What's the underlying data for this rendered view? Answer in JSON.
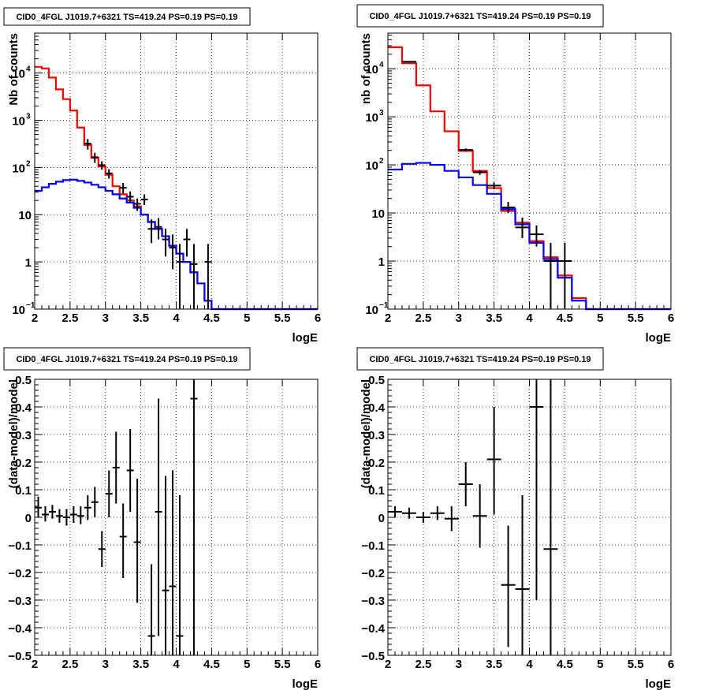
{
  "colors": {
    "data": "#000000",
    "total_model": "#ff0000",
    "source_model": "#0000ff"
  },
  "chart_data": [
    {
      "type": "line",
      "scale_y": "log",
      "title": "CID0_4FGL J1019.7+6321 TS=419.24 PS=0.19 PS=0.19",
      "xlabel": "logE",
      "ylabel": "Nb of counts",
      "xlim": [
        2,
        6
      ],
      "ylim": [
        0.1,
        70000
      ],
      "grid": true,
      "x_ticks": [
        "2",
        "2.5",
        "3",
        "3.5",
        "4",
        "4.5",
        "5",
        "5.5",
        "6"
      ],
      "y_ticks": [
        {
          "value": 0.1,
          "label": "10",
          "exp": "−1"
        },
        {
          "value": 1,
          "label": "1",
          "exp": ""
        },
        {
          "value": 10,
          "label": "10",
          "exp": ""
        },
        {
          "value": 100,
          "label": "10",
          "exp": "2"
        },
        {
          "value": 1000,
          "label": "10",
          "exp": "3"
        },
        {
          "value": 10000,
          "label": "10",
          "exp": "4"
        }
      ],
      "bin_width": 0.1,
      "bin_starts": [
        2.0,
        2.1,
        2.2,
        2.3,
        2.4,
        2.5,
        2.6,
        2.7,
        2.8,
        2.9,
        3.0,
        3.1,
        3.2,
        3.3,
        3.4,
        3.5,
        3.6,
        3.7,
        3.8,
        3.9,
        4.0,
        4.1,
        4.2,
        4.3,
        4.4,
        4.5,
        4.6,
        4.7,
        4.8,
        4.9,
        5.0,
        5.1,
        5.2,
        5.3,
        5.4,
        5.5,
        5.6,
        5.7,
        5.8,
        5.9
      ],
      "series": [
        {
          "role": "total",
          "values": [
            13500,
            12500,
            8000,
            4500,
            2800,
            1600,
            700,
            300,
            160,
            105,
            70,
            40,
            27,
            20,
            15,
            10,
            7,
            5,
            3.5,
            2.2,
            1.5,
            1.0,
            0.6,
            0.35,
            0.15,
            0.1,
            0.1,
            0.1,
            0.1,
            0.1,
            0.1,
            0.1,
            0.1,
            0.1,
            0.1,
            0.1,
            0.1,
            0.1,
            0.1,
            0.1
          ]
        },
        {
          "role": "source",
          "values": [
            32,
            38,
            45,
            50,
            54,
            55,
            52,
            48,
            43,
            38,
            32,
            27,
            22,
            18,
            14,
            10,
            7,
            5,
            3.5,
            2.2,
            1.5,
            1.0,
            0.6,
            0.35,
            0.15,
            0.1,
            0.1,
            0.1,
            0.1,
            0.1,
            0.1,
            0.1,
            0.1,
            0.1,
            0.1,
            0.1,
            0.1,
            0.1,
            0.1,
            0.1
          ]
        }
      ],
      "points": [
        {
          "x": 2.75,
          "y": 320,
          "ylo": 240,
          "yhi": 400
        },
        {
          "x": 2.85,
          "y": 165,
          "ylo": 125,
          "yhi": 205
        },
        {
          "x": 2.95,
          "y": 112,
          "ylo": 90,
          "yhi": 135
        },
        {
          "x": 3.05,
          "y": 75,
          "ylo": 58,
          "yhi": 92
        },
        {
          "x": 3.25,
          "y": 37,
          "ylo": 28,
          "yhi": 47
        },
        {
          "x": 3.35,
          "y": 24,
          "ylo": 18,
          "yhi": 31
        },
        {
          "x": 3.45,
          "y": 17,
          "ylo": 12,
          "yhi": 22
        },
        {
          "x": 3.55,
          "y": 21,
          "ylo": 16,
          "yhi": 27
        },
        {
          "x": 3.65,
          "y": 5,
          "ylo": 2.5,
          "yhi": 8
        },
        {
          "x": 3.75,
          "y": 5.5,
          "ylo": 3,
          "yhi": 8.5
        },
        {
          "x": 3.85,
          "y": 3,
          "ylo": 1.3,
          "yhi": 5
        },
        {
          "x": 3.95,
          "y": 2,
          "ylo": 0.7,
          "yhi": 3.8
        },
        {
          "x": 4.05,
          "y": 1,
          "ylo": 0.1,
          "yhi": 2.4
        },
        {
          "x": 4.15,
          "y": 3,
          "ylo": 1.3,
          "yhi": 5
        },
        {
          "x": 4.25,
          "y": 0.9,
          "ylo": 0.1,
          "yhi": 2.4
        },
        {
          "x": 4.45,
          "y": 1,
          "ylo": 0.1,
          "yhi": 2.4
        }
      ]
    },
    {
      "type": "line",
      "scale_y": "log",
      "title": "CID0_4FGL J1019.7+6321 TS=419.24 PS=0.19 PS=0.19",
      "xlabel": "logE",
      "ylabel": "nb of counts",
      "xlim": [
        2,
        6
      ],
      "ylim": [
        0.1,
        55000
      ],
      "grid": true,
      "x_ticks": [
        "2",
        "2.5",
        "3",
        "3.5",
        "4",
        "4.5",
        "5",
        "5.5",
        "6"
      ],
      "y_ticks": [
        {
          "value": 0.1,
          "label": "10",
          "exp": "−1"
        },
        {
          "value": 1,
          "label": "1",
          "exp": ""
        },
        {
          "value": 10,
          "label": "10",
          "exp": ""
        },
        {
          "value": 100,
          "label": "10",
          "exp": "2"
        },
        {
          "value": 1000,
          "label": "10",
          "exp": "3"
        },
        {
          "value": 10000,
          "label": "10",
          "exp": "4"
        }
      ],
      "bin_width": 0.2,
      "bin_starts": [
        2.0,
        2.2,
        2.4,
        2.6,
        2.8,
        3.0,
        3.2,
        3.4,
        3.6,
        3.8,
        4.0,
        4.2,
        4.4,
        4.6,
        4.8,
        5.0,
        5.2,
        5.4,
        5.6,
        5.8
      ],
      "series": [
        {
          "role": "total",
          "values": [
            28000,
            13000,
            4500,
            1300,
            500,
            195,
            75,
            33,
            11,
            6.3,
            2.6,
            1.2,
            0.5,
            0.17,
            0.1,
            0.1,
            0.1,
            0.1,
            0.1,
            0.1
          ]
        },
        {
          "role": "source",
          "values": [
            80,
            105,
            110,
            100,
            75,
            55,
            38,
            25,
            12,
            5.8,
            2.4,
            1.1,
            0.45,
            0.15,
            0.1,
            0.1,
            0.1,
            0.1,
            0.1,
            0.1
          ]
        }
      ],
      "points": [
        {
          "x": 2.3,
          "y": 14000,
          "ylo": 13500,
          "yhi": 14500
        },
        {
          "x": 3.1,
          "y": 205,
          "ylo": 190,
          "yhi": 220
        },
        {
          "x": 3.3,
          "y": 70,
          "ylo": 62,
          "yhi": 78
        },
        {
          "x": 3.5,
          "y": 37,
          "ylo": 31,
          "yhi": 43
        },
        {
          "x": 3.7,
          "y": 13,
          "ylo": 10,
          "yhi": 17
        },
        {
          "x": 3.9,
          "y": 5,
          "ylo": 3,
          "yhi": 8
        },
        {
          "x": 4.1,
          "y": 3.6,
          "ylo": 2,
          "yhi": 5.5
        },
        {
          "x": 4.3,
          "y": 1,
          "ylo": 0.1,
          "yhi": 2.4
        },
        {
          "x": 4.5,
          "y": 1,
          "ylo": 0.1,
          "yhi": 2.4
        }
      ]
    },
    {
      "type": "scatter",
      "title": "CID0_4FGL J1019.7+6321 TS=419.24 PS=0.19 PS=0.19",
      "xlabel": "logE",
      "ylabel": "(data-model)/model",
      "xlim": [
        2,
        6
      ],
      "ylim": [
        -0.5,
        0.5
      ],
      "grid": true,
      "x_ticks": [
        "2",
        "2.5",
        "3",
        "3.5",
        "4",
        "4.5",
        "5",
        "5.5",
        "6"
      ],
      "y_ticks": [
        "−0.5",
        "−0.4",
        "−0.3",
        "−0.2",
        "−0.1",
        "0",
        "0.1",
        "0.2",
        "0.3",
        "0.4",
        "0.5"
      ],
      "x_halfwidth": 0.05,
      "points": [
        {
          "x": 2.05,
          "y": 0.035,
          "ylo": 0.0,
          "yhi": 0.075
        },
        {
          "x": 2.15,
          "y": 0.01,
          "ylo": -0.015,
          "yhi": 0.04
        },
        {
          "x": 2.25,
          "y": 0.02,
          "ylo": -0.005,
          "yhi": 0.045
        },
        {
          "x": 2.35,
          "y": 0.005,
          "ylo": -0.02,
          "yhi": 0.03
        },
        {
          "x": 2.45,
          "y": 0.0,
          "ylo": -0.03,
          "yhi": 0.03
        },
        {
          "x": 2.55,
          "y": 0.01,
          "ylo": -0.02,
          "yhi": 0.04
        },
        {
          "x": 2.65,
          "y": 0.005,
          "ylo": -0.025,
          "yhi": 0.04
        },
        {
          "x": 2.75,
          "y": 0.035,
          "ylo": -0.01,
          "yhi": 0.08
        },
        {
          "x": 2.85,
          "y": 0.055,
          "ylo": 0.0,
          "yhi": 0.11
        },
        {
          "x": 2.95,
          "y": -0.115,
          "ylo": -0.18,
          "yhi": -0.05
        },
        {
          "x": 3.05,
          "y": 0.085,
          "ylo": 0.0,
          "yhi": 0.17
        },
        {
          "x": 3.15,
          "y": 0.18,
          "ylo": 0.05,
          "yhi": 0.31
        },
        {
          "x": 3.25,
          "y": -0.07,
          "ylo": -0.22,
          "yhi": 0.05
        },
        {
          "x": 3.35,
          "y": 0.17,
          "ylo": 0.02,
          "yhi": 0.32
        },
        {
          "x": 3.45,
          "y": -0.09,
          "ylo": -0.31,
          "yhi": 0.14
        },
        {
          "x": 3.65,
          "y": -0.43,
          "ylo": -0.5,
          "yhi": -0.17
        },
        {
          "x": 3.75,
          "y": 0.02,
          "ylo": -0.43,
          "yhi": 0.43
        },
        {
          "x": 3.85,
          "y": -0.265,
          "ylo": -0.5,
          "yhi": 0.15
        },
        {
          "x": 3.95,
          "y": -0.25,
          "ylo": -0.5,
          "yhi": 0.17
        },
        {
          "x": 4.05,
          "y": -0.43,
          "ylo": -0.5,
          "yhi": 0.08
        },
        {
          "x": 4.25,
          "y": 0.43,
          "ylo": -0.5,
          "yhi": 0.5
        }
      ]
    },
    {
      "type": "scatter",
      "title": "CID0_4FGL J1019.7+6321 TS=419.24 PS=0.19 PS=0.19",
      "xlabel": "logE",
      "ylabel": "(data-model)/model",
      "xlim": [
        2,
        6
      ],
      "ylim": [
        -0.5,
        0.5
      ],
      "grid": true,
      "x_ticks": [
        "2",
        "2.5",
        "3",
        "3.5",
        "4",
        "4.5",
        "5",
        "5.5",
        "6"
      ],
      "y_ticks": [
        "−0.5",
        "−0.4",
        "−0.3",
        "−0.2",
        "−0.1",
        "0",
        "0.1",
        "0.2",
        "0.3",
        "0.4",
        "0.5"
      ],
      "x_halfwidth": 0.1,
      "points": [
        {
          "x": 2.1,
          "y": 0.02,
          "ylo": 0.0,
          "yhi": 0.04
        },
        {
          "x": 2.3,
          "y": 0.015,
          "ylo": -0.005,
          "yhi": 0.035
        },
        {
          "x": 2.5,
          "y": 0.0,
          "ylo": -0.02,
          "yhi": 0.02
        },
        {
          "x": 2.7,
          "y": 0.015,
          "ylo": -0.01,
          "yhi": 0.04
        },
        {
          "x": 2.9,
          "y": -0.005,
          "ylo": -0.05,
          "yhi": 0.04
        },
        {
          "x": 3.1,
          "y": 0.12,
          "ylo": 0.04,
          "yhi": 0.2
        },
        {
          "x": 3.3,
          "y": 0.005,
          "ylo": -0.11,
          "yhi": 0.12
        },
        {
          "x": 3.5,
          "y": 0.21,
          "ylo": 0.01,
          "yhi": 0.4
        },
        {
          "x": 3.7,
          "y": -0.245,
          "ylo": -0.47,
          "yhi": -0.03
        },
        {
          "x": 3.9,
          "y": -0.26,
          "ylo": -0.5,
          "yhi": 0.08
        },
        {
          "x": 4.1,
          "y": 0.4,
          "ylo": -0.3,
          "yhi": 0.5
        },
        {
          "x": 4.3,
          "y": -0.115,
          "ylo": -0.5,
          "yhi": 0.5
        }
      ]
    }
  ]
}
